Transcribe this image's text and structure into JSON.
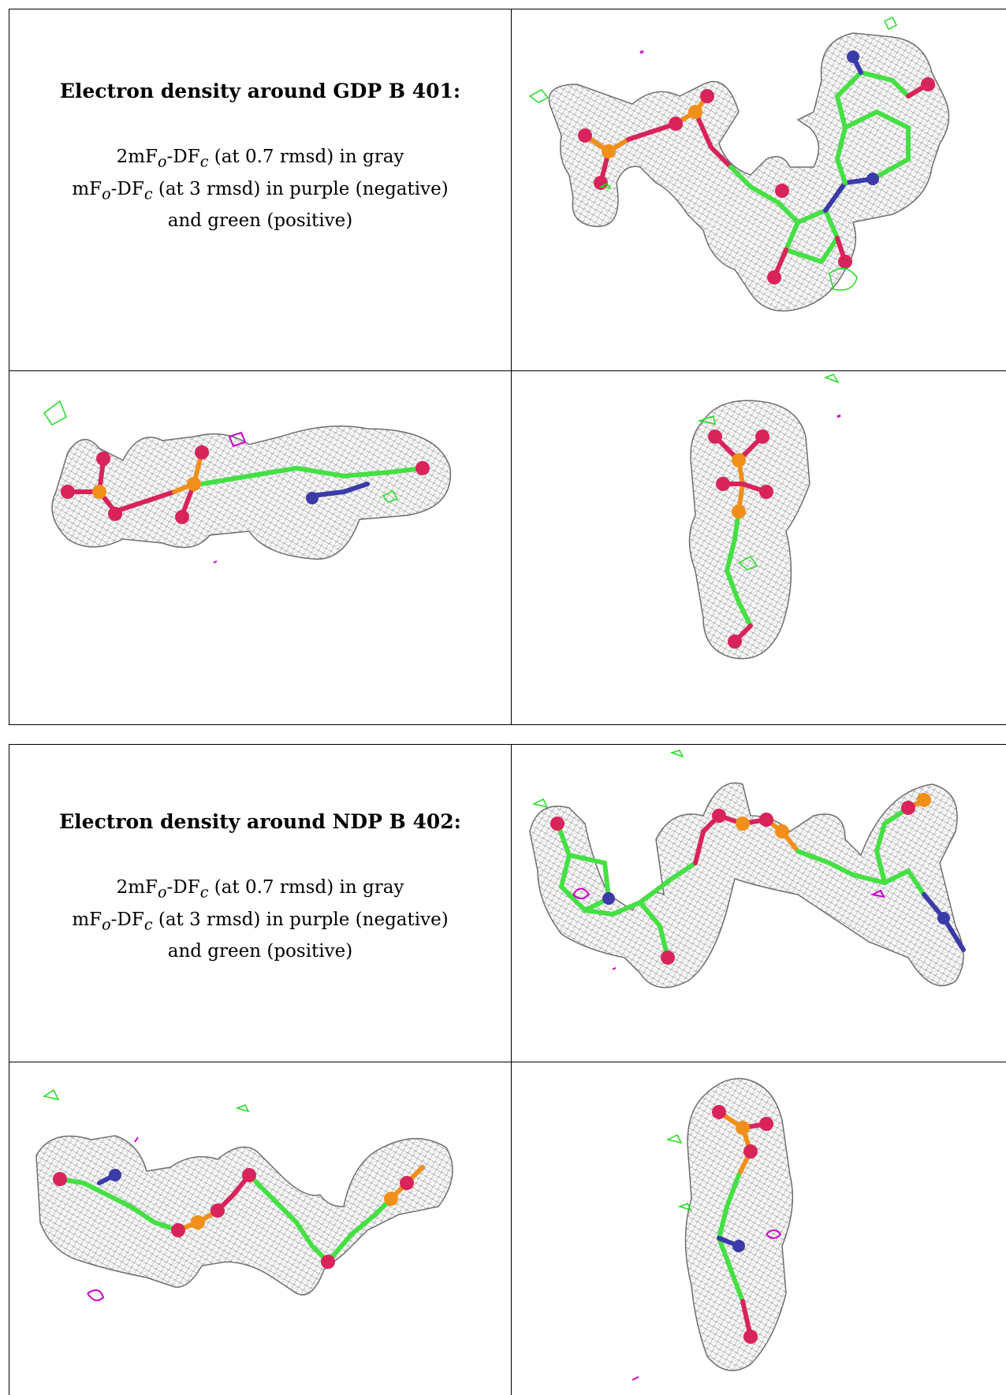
{
  "panels": [
    {
      "heading": "Electron density around GDP B 401:",
      "legend": {
        "line1": {
          "prefix": "2mF",
          "sub1": "o",
          "mid": "-DF",
          "sub2": "c",
          "suffix": " (at 0.7 rmsd) in gray"
        },
        "line2": {
          "prefix": "mF",
          "sub1": "o",
          "mid": "-DF",
          "sub2": "c",
          "suffix": " (at 3 rmsd) in purple (negative)"
        },
        "line3": "and green (positive)"
      }
    },
    {
      "heading": "Electron density around NDP B 402:",
      "legend": {
        "line1": {
          "prefix": "2mF",
          "sub1": "o",
          "mid": "-DF",
          "sub2": "c",
          "suffix": " (at 0.7 rmsd) in gray"
        },
        "line2": {
          "prefix": "mF",
          "sub1": "o",
          "mid": "-DF",
          "sub2": "c",
          "suffix": " (at 3 rmsd) in purple (negative)"
        },
        "line3": "and green (positive)"
      }
    }
  ],
  "colors": {
    "mesh": "#8a8a8a",
    "carbon": "#44e044",
    "oxygen": "#d8245a",
    "nitrogen": "#3a3aa8",
    "phosphorus": "#f0901a",
    "negative": "#cc00cc",
    "positive": "#22dd22"
  }
}
